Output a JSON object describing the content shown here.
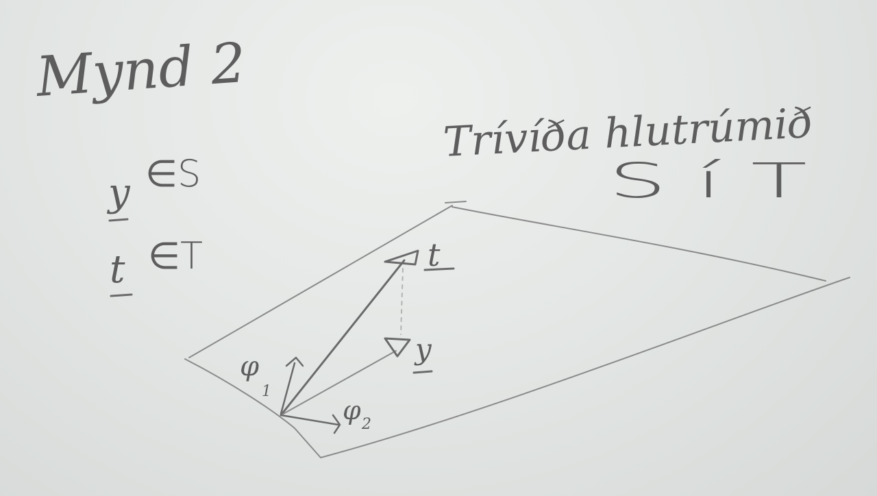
{
  "title": "Mynd 2",
  "subtitle": "Trívíða hlutrúmið",
  "subspaces_label": "S  í  T",
  "legend": [
    {
      "vector": "y",
      "relation": "∈S"
    },
    {
      "vector": "t",
      "relation": "∈T"
    }
  ],
  "diagram": {
    "vector_t": "t",
    "vector_y": "y",
    "basis_1": "φ",
    "basis_1_index": "1",
    "basis_2": "φ",
    "basis_2_index": "2"
  }
}
